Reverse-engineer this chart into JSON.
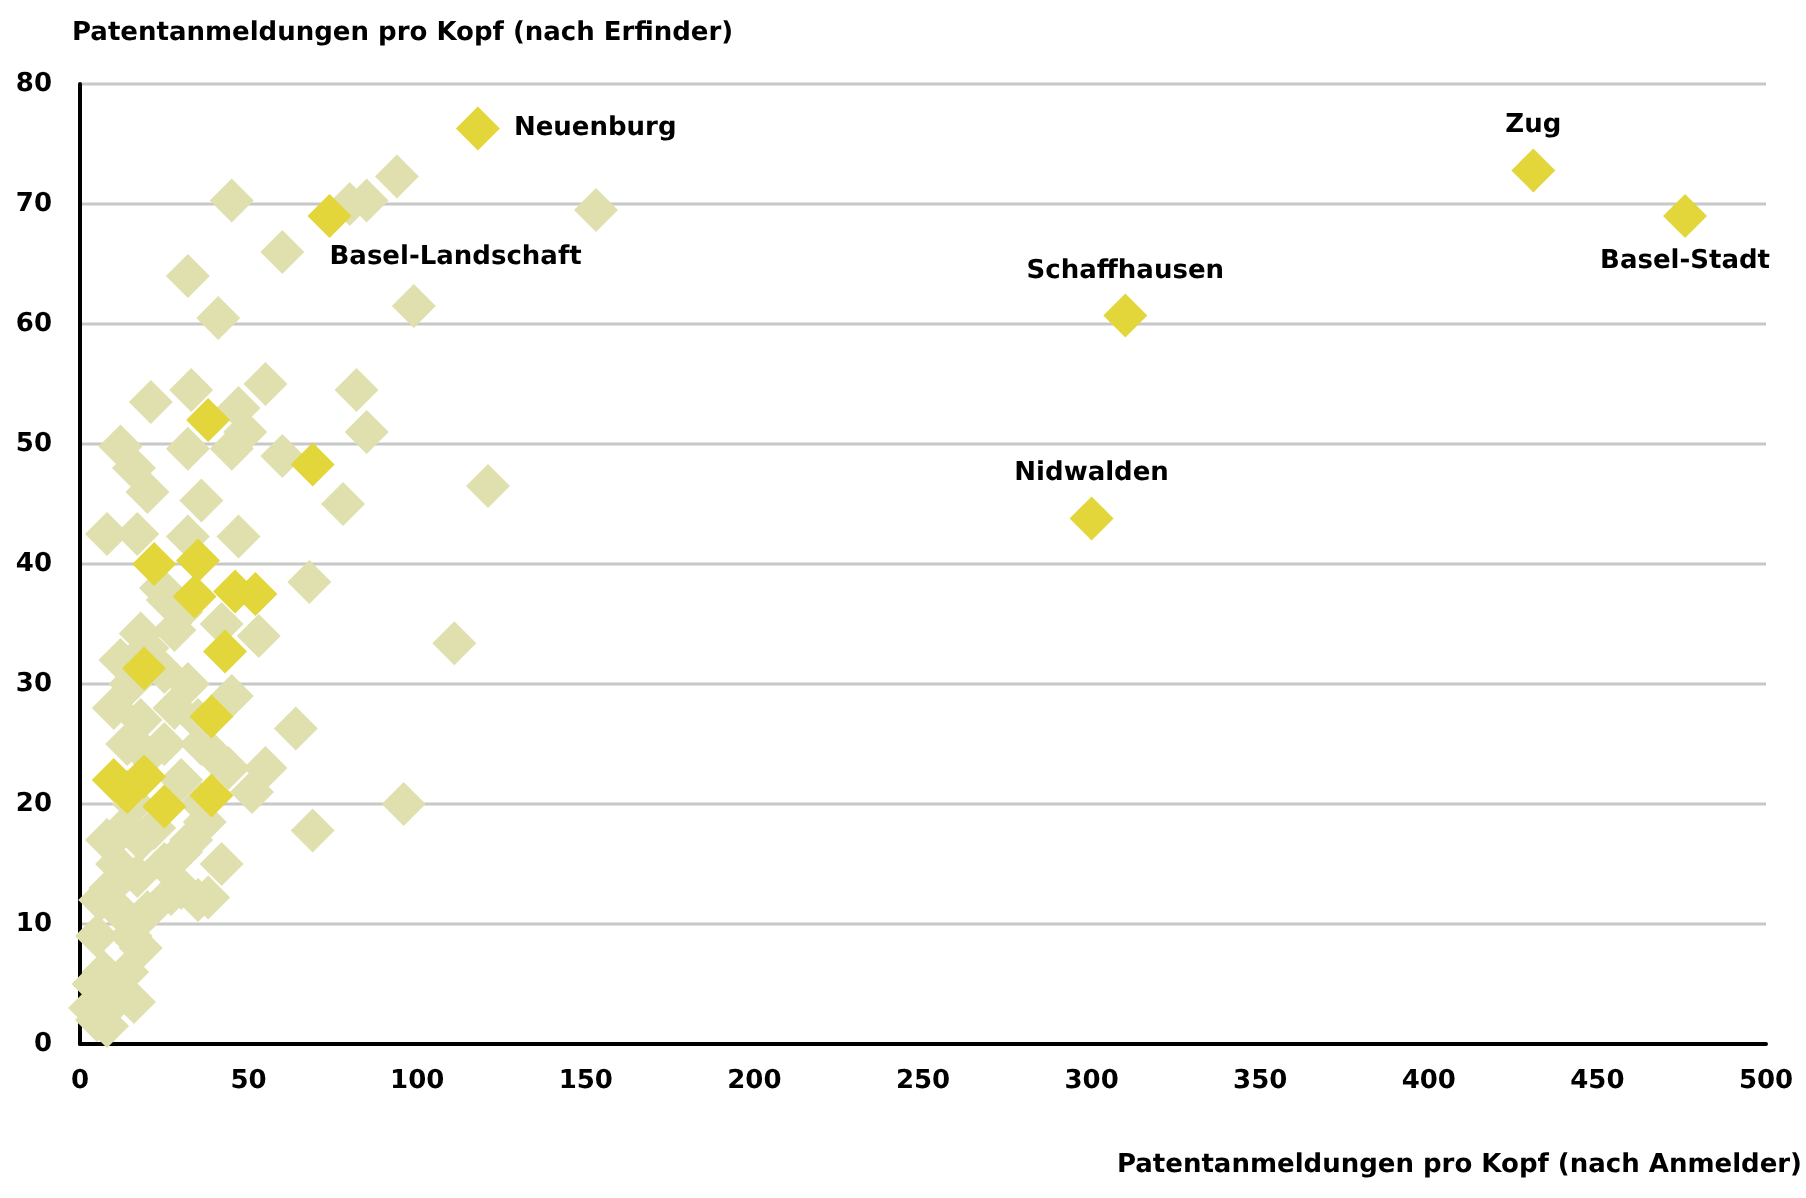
{
  "chart_data": {
    "type": "scatter",
    "xlabel": "Patentanmeldungen pro Kopf (nach Anmelder)",
    "ylabel": "Patentanmeldungen pro Kopf (nach Erfinder)",
    "xlim": [
      0,
      500
    ],
    "xticks": [
      0,
      50,
      100,
      150,
      200,
      250,
      300,
      350,
      400,
      450,
      500
    ],
    "ylim": [
      0,
      80
    ],
    "yticks": [
      0,
      10,
      20,
      30,
      40,
      50,
      60,
      70,
      80
    ],
    "grid": "y",
    "marker": "diamond",
    "series": [
      {
        "color": "#dfe0ae",
        "x": [
          45,
          94,
          85,
          80,
          153,
          60,
          32,
          41,
          99,
          55,
          82,
          33,
          21,
          47,
          49,
          85,
          12,
          45,
          32,
          60,
          16,
          20,
          36,
          78,
          121,
          8,
          17,
          32,
          47,
          68,
          26,
          28,
          42,
          18,
          53,
          111,
          45,
          64,
          36,
          55,
          51,
          37,
          38,
          69,
          96,
          25,
          30,
          5,
          4,
          7,
          5,
          6,
          9,
          12,
          15,
          11,
          8,
          13,
          18,
          16,
          22,
          27,
          30,
          33,
          20,
          25,
          18,
          10,
          28,
          32,
          15,
          12,
          20,
          25,
          35,
          40,
          44,
          30,
          36,
          42,
          14,
          18,
          12,
          20,
          35,
          17,
          30,
          14,
          24,
          8,
          3,
          16
        ],
        "values": [
          70.3,
          72.3,
          70.3,
          70,
          69.5,
          66,
          64,
          60.5,
          61.5,
          55,
          54.5,
          54.5,
          53.5,
          53,
          51,
          51,
          49.8,
          49.6,
          49.6,
          49,
          48,
          46,
          45.3,
          45,
          46.5,
          42.5,
          42.5,
          42.3,
          42.3,
          38.5,
          37,
          34.5,
          35,
          34.2,
          34,
          33.4,
          29,
          26.3,
          25,
          23,
          21,
          18.5,
          12.2,
          17.8,
          20,
          15,
          13,
          2,
          5,
          6,
          9,
          12,
          13,
          11,
          9,
          15,
          17,
          18,
          17,
          20,
          18,
          12.5,
          16,
          17,
          24,
          25,
          27,
          28,
          28,
          30,
          30,
          32,
          33,
          31,
          27,
          24,
          23,
          22,
          20,
          15,
          6,
          8,
          4,
          11,
          12,
          14,
          36,
          25,
          38,
          1.5,
          3,
          3.5
        ]
      },
      {
        "color": "#e2d63a",
        "x": [
          118,
          74,
          431,
          476,
          310,
          300,
          38,
          69,
          22,
          34,
          35,
          52,
          46,
          43,
          19,
          39,
          10,
          14,
          25,
          39,
          19
        ],
        "values": [
          76.3,
          69,
          72.8,
          69,
          60.7,
          43.8,
          52,
          48.3,
          40,
          37.3,
          40.3,
          37.5,
          37.7,
          32.7,
          31.3,
          27.3,
          22,
          21,
          19.8,
          20.7,
          22.3
        ]
      }
    ],
    "annotations": [
      {
        "text": "Neuenburg",
        "x": 118,
        "y": 76.3
      },
      {
        "text": "Basel-Landschaft",
        "x": 74,
        "y": 69
      },
      {
        "text": "Zug",
        "x": 431,
        "y": 72.8
      },
      {
        "text": "Basel-Stadt",
        "x": 476,
        "y": 69
      },
      {
        "text": "Schaffhausen",
        "x": 310,
        "y": 60.7
      },
      {
        "text": "Nidwalden",
        "x": 300,
        "y": 43.8
      }
    ]
  }
}
